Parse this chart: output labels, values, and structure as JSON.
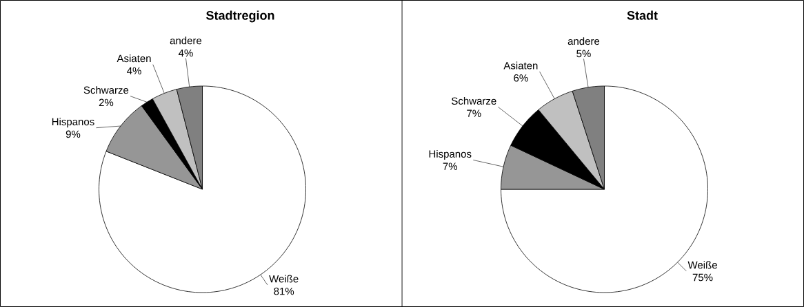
{
  "chart_data": [
    {
      "type": "pie",
      "title": "Stadtregion",
      "categories": [
        "Weiße",
        "Hispanos",
        "Schwarze",
        "Asiaten",
        "andere"
      ],
      "values": [
        81,
        9,
        2,
        4,
        4
      ],
      "value_labels": [
        "81%",
        "9%",
        "2%",
        "4%",
        "4%"
      ],
      "colors": [
        "#ffffff",
        "#969696",
        "#000000",
        "#c0c0c0",
        "#808080"
      ]
    },
    {
      "type": "pie",
      "title": "Stadt",
      "categories": [
        "Weiße",
        "Hispanos",
        "Schwarze",
        "Asiaten",
        "andere"
      ],
      "values": [
        75,
        7,
        7,
        6,
        5
      ],
      "value_labels": [
        "75%",
        "7%",
        "7%",
        "6%",
        "5%"
      ],
      "colors": [
        "#ffffff",
        "#969696",
        "#000000",
        "#c0c0c0",
        "#808080"
      ]
    }
  ]
}
